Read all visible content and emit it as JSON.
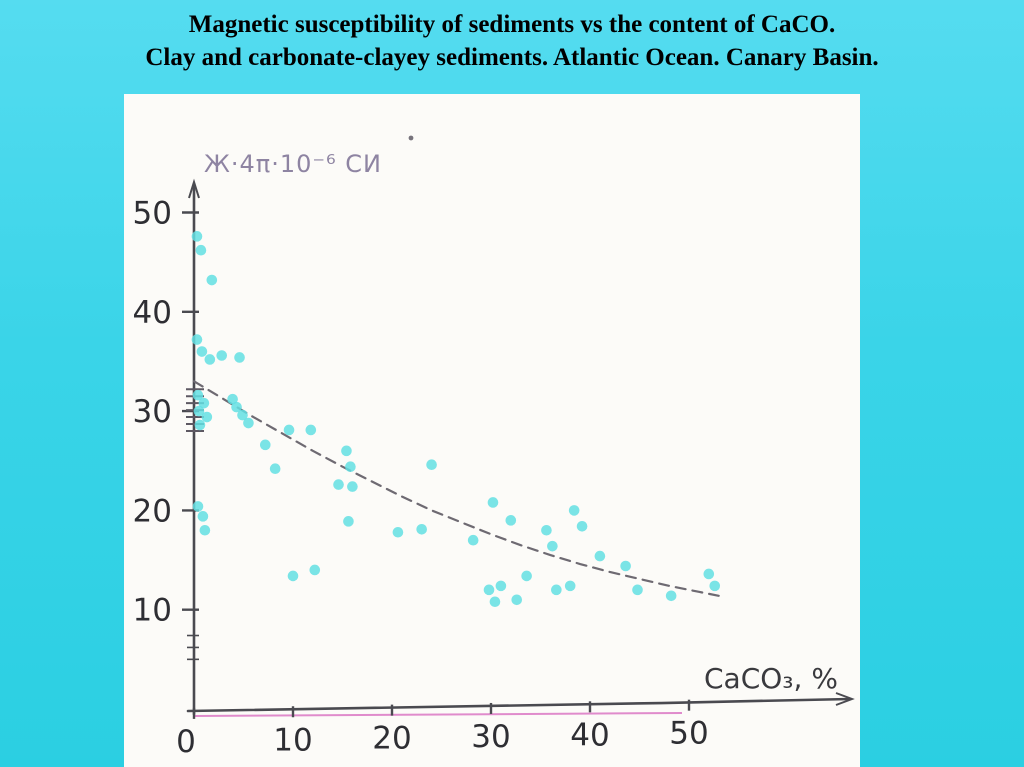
{
  "slide": {
    "title_line1": "Magnetic susceptibility of sediments vs the content of CaCO.",
    "title_line2": "Clay and carbonate-clayey sediments. Atlantic Ocean. Canary Basin."
  },
  "chart_data": {
    "type": "scatter",
    "title": "Magnetic susceptibility of sediments vs the content of CaCO3",
    "y_axis_label": "Ж·4π·10⁻⁶ СИ",
    "x_axis_label": "CaCO₃, %",
    "xlabel": "CaCO3 content, %",
    "ylabel": "Magnetic susceptibility, 4pi*10^-6 SI",
    "x_ticks": [
      0,
      10,
      20,
      30,
      40,
      50
    ],
    "y_ticks": [
      10,
      20,
      30,
      40,
      50
    ],
    "y_minor_ticks": [
      5.0,
      6.2,
      7.4
    ],
    "xlim": [
      0,
      55
    ],
    "ylim": [
      0,
      55
    ],
    "grid": false,
    "legend": "none",
    "point_color": "#63dfe3",
    "axis_color": "#4a4a50",
    "trend_color": "#6e6a72",
    "baseline_color": "#d86fc0",
    "points": [
      [
        0.3,
        47.6
      ],
      [
        0.7,
        46.2
      ],
      [
        1.8,
        43.2
      ],
      [
        0.3,
        37.2
      ],
      [
        0.8,
        36.0
      ],
      [
        1.6,
        35.2
      ],
      [
        2.8,
        35.6
      ],
      [
        4.6,
        35.4
      ],
      [
        0.4,
        31.6
      ],
      [
        1.0,
        30.8
      ],
      [
        0.5,
        30.0
      ],
      [
        1.3,
        29.4
      ],
      [
        0.6,
        28.6
      ],
      [
        3.9,
        31.2
      ],
      [
        4.3,
        30.4
      ],
      [
        4.9,
        29.6
      ],
      [
        5.5,
        28.8
      ],
      [
        7.2,
        26.6
      ],
      [
        9.6,
        28.1
      ],
      [
        11.8,
        28.1
      ],
      [
        8.2,
        24.2
      ],
      [
        0.4,
        20.4
      ],
      [
        0.9,
        19.4
      ],
      [
        1.1,
        18.0
      ],
      [
        10.0,
        13.4
      ],
      [
        12.2,
        14.0
      ],
      [
        14.6,
        22.6
      ],
      [
        15.4,
        26.0
      ],
      [
        15.8,
        24.4
      ],
      [
        16.0,
        22.4
      ],
      [
        15.6,
        18.9
      ],
      [
        20.6,
        17.8
      ],
      [
        23.0,
        18.1
      ],
      [
        24.0,
        24.6
      ],
      [
        28.2,
        17.0
      ],
      [
        30.2,
        20.8
      ],
      [
        32.0,
        19.0
      ],
      [
        29.8,
        12.0
      ],
      [
        31.0,
        12.4
      ],
      [
        30.4,
        10.8
      ],
      [
        32.6,
        11.0
      ],
      [
        33.6,
        13.4
      ],
      [
        35.6,
        18.0
      ],
      [
        36.2,
        16.4
      ],
      [
        36.6,
        12.0
      ],
      [
        38.0,
        12.4
      ],
      [
        38.4,
        20.0
      ],
      [
        39.2,
        18.4
      ],
      [
        41.0,
        15.4
      ],
      [
        43.6,
        14.4
      ],
      [
        44.8,
        12.0
      ],
      [
        48.2,
        11.4
      ],
      [
        52.0,
        13.6
      ],
      [
        52.6,
        12.4
      ]
    ],
    "axis_cluster_marks": [
      28.0,
      28.7,
      29.4,
      30.1,
      30.8,
      31.5,
      32.2
    ],
    "trend_dashed": [
      [
        0,
        33.0
      ],
      [
        3,
        31.2
      ],
      [
        6,
        29.4
      ],
      [
        9,
        27.7
      ],
      [
        12,
        26.0
      ],
      [
        15,
        24.4
      ],
      [
        18,
        22.9
      ],
      [
        21,
        21.4
      ],
      [
        24,
        20.0
      ],
      [
        27,
        18.8
      ],
      [
        30,
        17.6
      ],
      [
        33,
        16.5
      ],
      [
        36,
        15.5
      ],
      [
        39,
        14.6
      ],
      [
        42,
        13.8
      ],
      [
        45,
        13.1
      ],
      [
        48,
        12.4
      ],
      [
        51,
        11.8
      ],
      [
        53,
        11.4
      ]
    ]
  }
}
